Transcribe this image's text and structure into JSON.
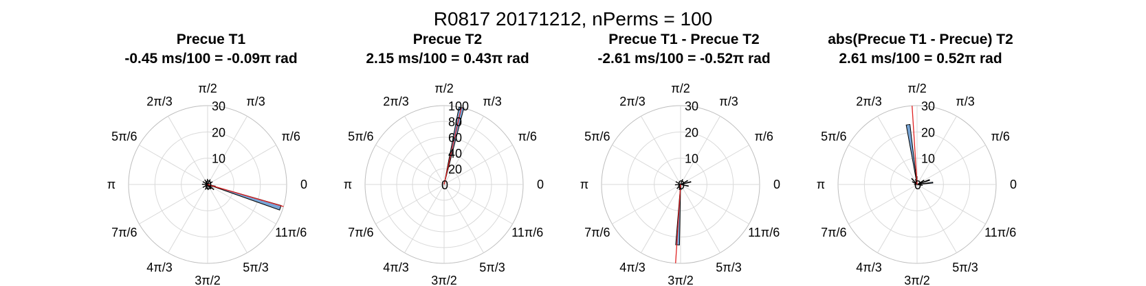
{
  "figure": {
    "title": "R0817 20171212, nPerms = 100"
  },
  "theta_tick_labels": [
    "0",
    "π/6",
    "π/3",
    "π/2",
    "2π/3",
    "5π/6",
    "π",
    "7π/6",
    "4π/3",
    "3π/2",
    "5π/3",
    "11π/6"
  ],
  "colors": {
    "bar_fill": "#78a5d6",
    "bar_edge": "#000000",
    "mean_line": "#e02020",
    "grid": "#d9d9d9",
    "axis": "#bdbdbd"
  },
  "chart_data": [
    {
      "type": "polar-histogram",
      "title": "Precue T1",
      "subtitle": "-0.45 ms/100 = -0.09π rad",
      "rlim": [
        0,
        30
      ],
      "r_ticks": [
        10,
        20,
        30
      ],
      "mean_angle_rad": -0.283,
      "bin_width_rad": 0.0628,
      "bars": [
        {
          "angle_rad": -0.31,
          "count": 29
        },
        {
          "angle_rad": -0.24,
          "count": 3
        },
        {
          "angle_rad": -0.38,
          "count": 2
        },
        {
          "angle_rad": -0.69,
          "count": 3
        },
        {
          "angle_rad": -0.82,
          "count": 2
        },
        {
          "angle_rad": 0.5,
          "count": 2
        },
        {
          "angle_rad": 1.1,
          "count": 2
        },
        {
          "angle_rad": 1.6,
          "count": 2
        },
        {
          "angle_rad": 2.1,
          "count": 2
        },
        {
          "angle_rad": 2.6,
          "count": 2
        },
        {
          "angle_rad": 3.1,
          "count": 2
        },
        {
          "angle_rad": 3.7,
          "count": 2
        },
        {
          "angle_rad": 4.3,
          "count": 2
        },
        {
          "angle_rad": 4.8,
          "count": 2
        },
        {
          "angle_rad": 5.3,
          "count": 2
        }
      ]
    },
    {
      "type": "polar-histogram",
      "title": "Precue T2",
      "subtitle": "2.15 ms/100 = 0.43π rad",
      "rlim": [
        0,
        100
      ],
      "r_ticks": [
        20,
        40,
        60,
        80,
        100
      ],
      "mean_angle_rad": 1.351,
      "bin_width_rad": 0.0628,
      "bars": [
        {
          "angle_rad": 1.35,
          "count": 100
        }
      ]
    },
    {
      "type": "polar-histogram",
      "title": "Precue T1 - Precue T2",
      "subtitle": "-2.61 ms/100 = -0.52π rad",
      "rlim": [
        0,
        30
      ],
      "r_ticks": [
        10,
        20,
        30
      ],
      "mean_angle_rad": -1.634,
      "bin_width_rad": 0.0628,
      "bars": [
        {
          "angle_rad": -1.62,
          "count": 23
        },
        {
          "angle_rad": -1.5,
          "count": 2
        },
        {
          "angle_rad": -1.8,
          "count": 2
        },
        {
          "angle_rad": 0.25,
          "count": 4
        },
        {
          "angle_rad": 0.5,
          "count": 3
        },
        {
          "angle_rad": -0.2,
          "count": 3
        },
        {
          "angle_rad": 2.6,
          "count": 2
        },
        {
          "angle_rad": 3.2,
          "count": 2
        },
        {
          "angle_rad": 1.2,
          "count": 2
        },
        {
          "angle_rad": 4.0,
          "count": 2
        }
      ]
    },
    {
      "type": "polar-histogram",
      "title": "abs(Precue T1 - Precue) T2",
      "subtitle": "2.61 ms/100 = 0.52π rad",
      "rlim": [
        0,
        30
      ],
      "r_ticks": [
        10,
        20,
        30
      ],
      "mean_angle_rad": 1.634,
      "bin_width_rad": 0.0628,
      "bars": [
        {
          "angle_rad": 1.72,
          "count": 23
        },
        {
          "angle_rad": 1.6,
          "count": 3
        },
        {
          "angle_rad": 1.85,
          "count": 2
        },
        {
          "angle_rad": 0.12,
          "count": 6
        },
        {
          "angle_rad": 0.35,
          "count": 5
        },
        {
          "angle_rad": 0.55,
          "count": 3
        },
        {
          "angle_rad": 2.3,
          "count": 3
        },
        {
          "angle_rad": 2.6,
          "count": 2
        },
        {
          "angle_rad": -0.15,
          "count": 2
        },
        {
          "angle_rad": 3.1,
          "count": 1
        }
      ]
    }
  ]
}
